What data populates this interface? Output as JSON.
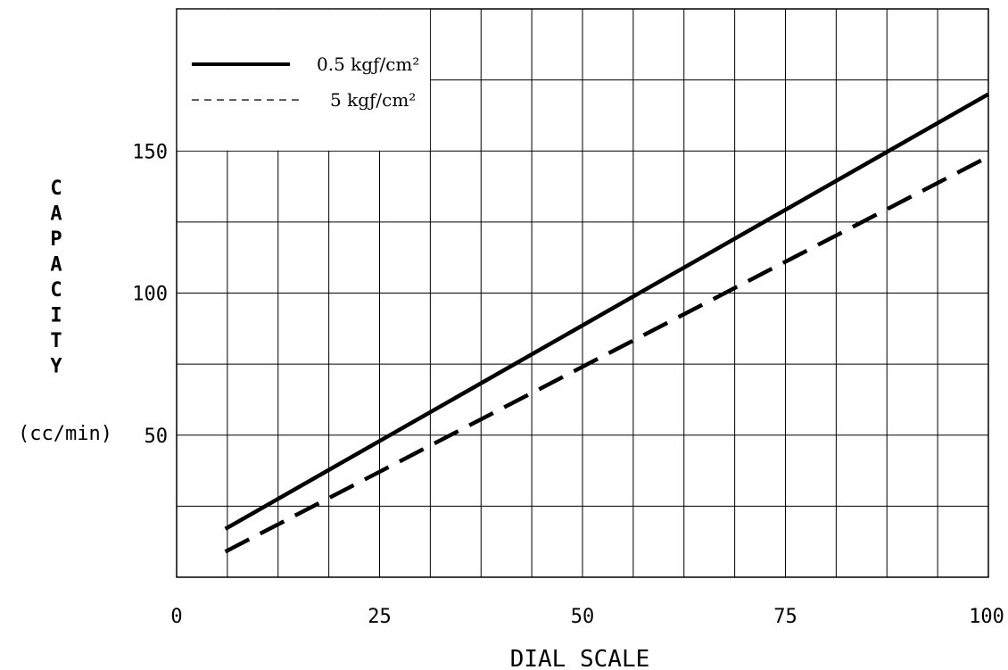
{
  "chart_data": {
    "type": "line",
    "xlabel": "DIAL SCALE",
    "ylabel": "CAPACITY",
    "ylabel_unit": "(cc/min)",
    "xlim": [
      0,
      100
    ],
    "ylim": [
      0,
      200
    ],
    "x_ticks": [
      "0",
      "25",
      "50",
      "75",
      "100"
    ],
    "y_ticks": [
      "50",
      "100",
      "150"
    ],
    "grid": true,
    "legend_position": "top-left",
    "series": [
      {
        "name": "0.5 kgƒ/cm²",
        "style": "solid",
        "color": "#000000",
        "x": [
          6,
          100
        ],
        "y": [
          17,
          170
        ]
      },
      {
        "name": "5 kgƒ/cm²",
        "style": "dashed",
        "color": "#000000",
        "x": [
          6,
          100
        ],
        "y": [
          9,
          148
        ]
      }
    ]
  }
}
